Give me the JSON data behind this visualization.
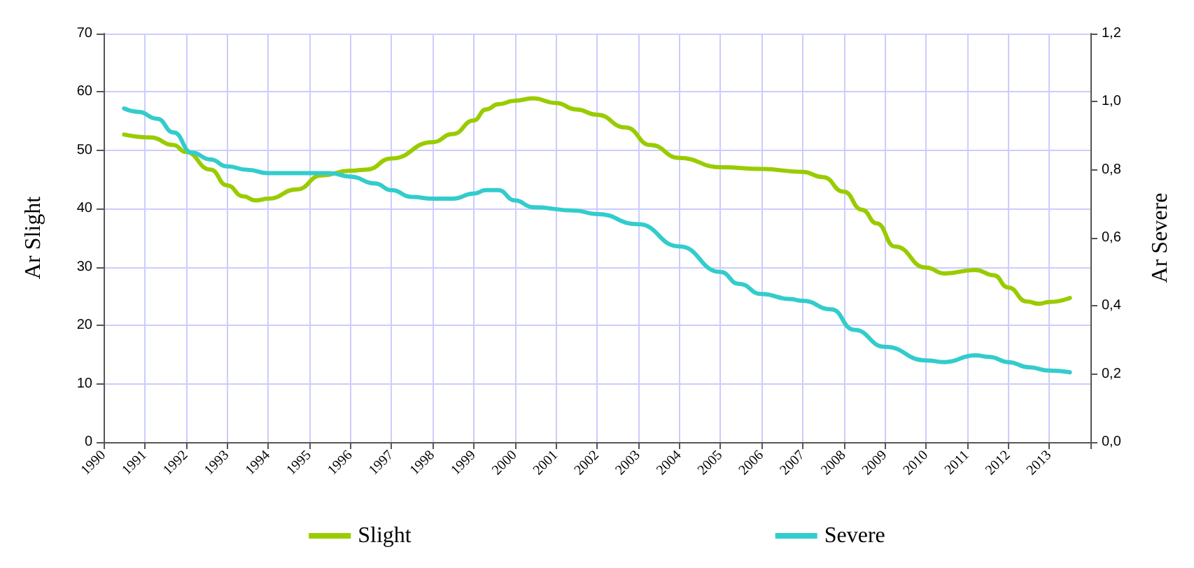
{
  "chart_data": {
    "type": "line",
    "ylabel": "Ar Slight",
    "y2label": "Ar Severe",
    "xlim": [
      1990,
      2014
    ],
    "xticks": [
      1990,
      1991,
      1992,
      1993,
      1994,
      1995,
      1996,
      1997,
      1998,
      1999,
      2000,
      2001,
      2002,
      2003,
      2004,
      2005,
      2006,
      2007,
      2008,
      2009,
      2010,
      2011,
      2012,
      2013,
      {
        "value": 2014,
        "label": null
      }
    ],
    "ylim": [
      0,
      70
    ],
    "yticks": [
      0,
      10,
      20,
      30,
      40,
      50,
      60,
      70
    ],
    "y2lim": [
      0,
      1.2
    ],
    "y2ticks": [
      {
        "value": 0,
        "label": "0,0"
      },
      {
        "value": 0.2,
        "label": "0,2"
      },
      {
        "value": 0.4,
        "label": "0,4"
      },
      {
        "value": 0.6,
        "label": "0,6"
      },
      {
        "value": 0.8,
        "label": "0,8"
      },
      {
        "value": 1.0,
        "label": "1,0"
      },
      {
        "value": 1.2,
        "label": "1,2"
      }
    ],
    "grid": true,
    "legend": "bottom",
    "marker": "none",
    "line_style": "solid",
    "series": [
      {
        "name": "Slight",
        "color": "#99cc00",
        "x": [
          1990.5,
          1991.15,
          1991.7,
          1992,
          1992.6,
          1993,
          1993.4,
          1993.7,
          1994,
          1994.7,
          1995.3,
          1996,
          1996.4,
          1997,
          1998,
          1998.5,
          1999,
          1999.3,
          1999.6,
          2000,
          2000.45,
          2001,
          2001.5,
          2002,
          2002.7,
          2003.3,
          2004,
          2005,
          2006,
          2007,
          2007.5,
          2008,
          2008.45,
          2008.8,
          2009.25,
          2010,
          2010.45,
          2011.2,
          2011.65,
          2012,
          2012.45,
          2012.75,
          2013,
          2013.5
        ],
        "values": [
          52.7,
          52.2,
          50.9,
          49.7,
          46.7,
          44,
          42.1,
          41.4,
          41.7,
          43.3,
          45.7,
          46.5,
          46.7,
          48.6,
          51.4,
          52.8,
          55.1,
          57,
          57.9,
          58.5,
          58.9,
          58.1,
          57,
          56.1,
          53.9,
          50.9,
          48.7,
          47.1,
          46.8,
          46.3,
          45.4,
          42.9,
          39.8,
          37.5,
          33.5,
          29.9,
          28.9,
          29.5,
          28.6,
          26.5,
          24.1,
          23.7,
          24,
          24.7
        ]
      },
      {
        "name": "Severe",
        "color": "#33cccc",
        "axis": "y2",
        "x": [
          1990.5,
          1990.85,
          1991.3,
          1991.7,
          1992.15,
          1992.6,
          1993,
          1993.5,
          1994,
          1994.5,
          1995.5,
          1996,
          1996.6,
          1997,
          1997.5,
          1998,
          1998.5,
          1999,
          1999.3,
          1999.6,
          2000,
          2000.45,
          2001.45,
          2002,
          2003,
          2004,
          2005,
          2005.45,
          2006,
          2006.7,
          2007,
          2007.7,
          2008.25,
          2009,
          2010,
          2010.45,
          2011.2,
          2011.55,
          2012,
          2012.5,
          2013,
          2013.5
        ],
        "values": [
          0.98,
          0.97,
          0.95,
          0.91,
          0.85,
          0.83,
          0.81,
          0.8,
          0.79,
          0.79,
          0.79,
          0.78,
          0.76,
          0.74,
          0.72,
          0.715,
          0.715,
          0.73,
          0.74,
          0.74,
          0.71,
          0.69,
          0.68,
          0.67,
          0.64,
          0.575,
          0.5,
          0.465,
          0.435,
          0.42,
          0.415,
          0.39,
          0.33,
          0.28,
          0.24,
          0.235,
          0.255,
          0.25,
          0.235,
          0.22,
          0.21,
          0.205
        ]
      }
    ]
  }
}
